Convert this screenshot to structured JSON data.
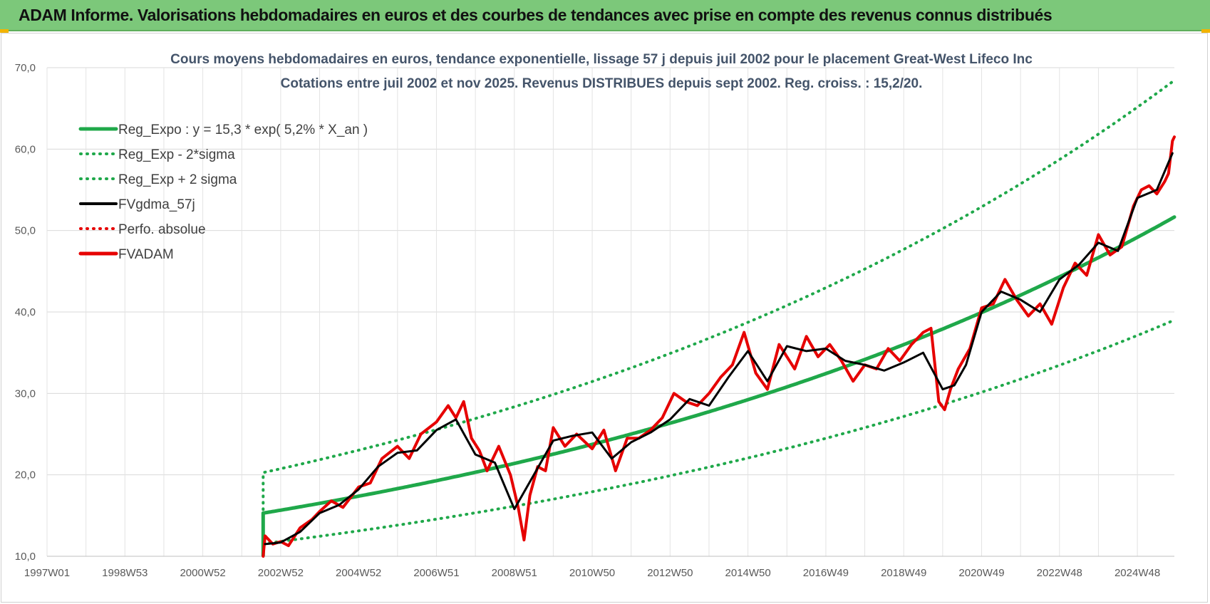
{
  "banner": {
    "title": "ADAM Informe. Valorisations hebdomadaires en euros et des courbes de tendances avec prise en compte des revenus connus distribués",
    "color": "#7cc87a"
  },
  "chart_data": {
    "type": "line",
    "title": "Cours moyens hebdomadaires en euros, tendance exponentielle, lissage 57 j depuis juil 2002 pour le placement Great-West Lifeco Inc",
    "subtitle": "Cotations entre juil 2002 et nov 2025. Revenus DISTRIBUES depuis sept 2002. Reg. croiss. : 15,2/20.",
    "xlabel": "",
    "ylabel": "",
    "x_range": [
      1997.0,
      2025.95
    ],
    "ylim": [
      10,
      70
    ],
    "yticks": [
      "10,0",
      "20,0",
      "30,0",
      "40,0",
      "50,0",
      "60,0",
      "70,0"
    ],
    "yticks_values": [
      10,
      20,
      30,
      40,
      50,
      60,
      70
    ],
    "xtick_labels": [
      "1997W01",
      "1998W53",
      "2000W52",
      "2002W52",
      "2004W52",
      "2006W51",
      "2008W51",
      "2010W50",
      "2012W50",
      "2014W50",
      "2016W49",
      "2018W49",
      "2020W49",
      "2022W48",
      "2024W48"
    ],
    "xtick_years": [
      1997.0,
      1999.0,
      2001.0,
      2003.0,
      2005.0,
      2007.0,
      2009.0,
      2011.0,
      2013.0,
      2015.0,
      2017.0,
      2019.0,
      2021.0,
      2023.0,
      2025.0
    ],
    "grid": true,
    "legend_position": "top-left",
    "series": [
      {
        "name": "Reg_Expo : y = 15,3 * exp( 5,2% *  X_an )",
        "color": "#1fa84a",
        "style": "solid",
        "model": {
          "a": 15.3,
          "rate": 0.052,
          "start_year": 2002.55,
          "end_year": 2025.95,
          "factor": 1.0
        }
      },
      {
        "name": "Reg_Exp - 2*sigma",
        "color": "#1fa84a",
        "style": "dotted",
        "model": {
          "a": 15.3,
          "rate": 0.052,
          "start_year": 2002.55,
          "end_year": 2025.95,
          "factor": 0.755
        }
      },
      {
        "name": "Reg_Exp + 2 sigma",
        "color": "#1fa84a",
        "style": "dotted",
        "model": {
          "a": 15.3,
          "rate": 0.052,
          "start_year": 2002.55,
          "end_year": 2025.95,
          "factor": 1.325
        }
      },
      {
        "name": "FVgdma_57j",
        "color": "#000000",
        "style": "solid",
        "x": [
          2002.6,
          2003.0,
          2003.5,
          2004.0,
          2004.5,
          2005.0,
          2005.5,
          2006.0,
          2006.5,
          2007.0,
          2007.5,
          2008.0,
          2008.5,
          2009.0,
          2009.5,
          2010.0,
          2010.5,
          2011.0,
          2011.5,
          2012.0,
          2012.5,
          2013.0,
          2013.5,
          2014.0,
          2014.5,
          2015.0,
          2015.5,
          2016.0,
          2016.5,
          2017.0,
          2017.5,
          2018.0,
          2018.5,
          2019.0,
          2019.5,
          2020.0,
          2020.3,
          2020.6,
          2021.0,
          2021.5,
          2022.0,
          2022.5,
          2023.0,
          2023.5,
          2024.0,
          2024.5,
          2025.0,
          2025.5,
          2025.9
        ],
        "values": [
          11.5,
          11.7,
          13.0,
          15.3,
          16.3,
          18.2,
          21.0,
          22.7,
          23.0,
          25.5,
          26.8,
          22.5,
          21.5,
          15.8,
          20.0,
          24.2,
          24.8,
          25.2,
          22.0,
          24.0,
          25.2,
          26.8,
          29.3,
          28.5,
          32.0,
          35.2,
          31.5,
          35.8,
          35.2,
          35.5,
          34.0,
          33.5,
          32.8,
          33.8,
          35.0,
          30.5,
          31.0,
          33.5,
          40.0,
          42.5,
          41.5,
          40.0,
          44.0,
          45.8,
          48.5,
          47.5,
          54.0,
          55.0,
          59.5
        ]
      },
      {
        "name": "Perfo. absolue",
        "color": "#e60000",
        "style": "dotted",
        "x": [],
        "values": []
      },
      {
        "name": "FVADAM",
        "color": "#e60000",
        "style": "solid",
        "x": [
          2002.55,
          2002.6,
          2002.8,
          2003.0,
          2003.2,
          2003.5,
          2003.8,
          2004.0,
          2004.3,
          2004.6,
          2005.0,
          2005.3,
          2005.6,
          2006.0,
          2006.3,
          2006.6,
          2007.0,
          2007.3,
          2007.5,
          2007.7,
          2007.9,
          2008.1,
          2008.3,
          2008.6,
          2008.9,
          2009.1,
          2009.25,
          2009.4,
          2009.6,
          2009.8,
          2010.0,
          2010.3,
          2010.6,
          2011.0,
          2011.3,
          2011.6,
          2011.9,
          2012.2,
          2012.5,
          2012.8,
          2013.1,
          2013.4,
          2013.7,
          2014.0,
          2014.3,
          2014.6,
          2014.9,
          2015.2,
          2015.5,
          2015.8,
          2016.0,
          2016.2,
          2016.5,
          2016.8,
          2017.1,
          2017.4,
          2017.7,
          2018.0,
          2018.3,
          2018.6,
          2018.9,
          2019.2,
          2019.5,
          2019.7,
          2019.9,
          2020.05,
          2020.2,
          2020.4,
          2020.7,
          2021.0,
          2021.3,
          2021.6,
          2021.9,
          2022.2,
          2022.5,
          2022.8,
          2023.1,
          2023.4,
          2023.7,
          2024.0,
          2024.3,
          2024.6,
          2024.9,
          2025.1,
          2025.3,
          2025.5,
          2025.7,
          2025.8,
          2025.9,
          2025.95
        ],
        "values": [
          10.0,
          12.5,
          11.5,
          11.8,
          11.3,
          13.5,
          14.5,
          15.5,
          16.8,
          16.0,
          18.5,
          19.0,
          22.0,
          23.5,
          22.0,
          25.0,
          26.5,
          28.5,
          27.0,
          29.0,
          24.5,
          23.0,
          20.5,
          23.5,
          20.0,
          16.0,
          12.0,
          17.5,
          21.0,
          20.5,
          25.8,
          23.5,
          25.0,
          23.2,
          25.5,
          20.5,
          24.5,
          24.5,
          25.5,
          27.0,
          30.0,
          29.0,
          28.5,
          30.0,
          32.0,
          33.5,
          37.5,
          32.5,
          30.5,
          36.0,
          34.5,
          33.0,
          37.0,
          34.5,
          36.0,
          34.0,
          31.5,
          33.5,
          33.0,
          35.5,
          34.0,
          36.0,
          37.5,
          38.0,
          29.0,
          28.0,
          30.5,
          33.0,
          35.5,
          40.5,
          41.0,
          44.0,
          41.5,
          39.5,
          41.0,
          38.5,
          43.0,
          46.0,
          44.5,
          49.5,
          47.0,
          48.0,
          53.0,
          55.0,
          55.5,
          54.5,
          56.0,
          57.0,
          61.0,
          61.5
        ]
      }
    ]
  }
}
